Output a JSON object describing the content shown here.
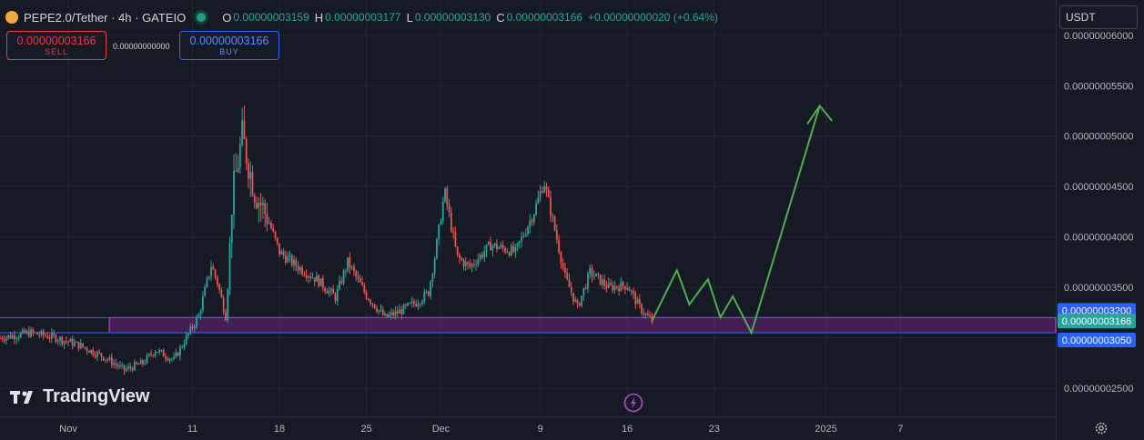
{
  "header": {
    "symbol": "PEPE2.0/Tether · 4h · GATEIO",
    "open_label": "O",
    "open": "0.00000003159",
    "high_label": "H",
    "high": "0.00000003177",
    "low_label": "L",
    "low": "0.00000003130",
    "close_label": "C",
    "close": "0.00000003166",
    "change": "+0.00000000020 (+0.64%)"
  },
  "trade": {
    "sell_price": "0.00000003166",
    "sell_label": "SELL",
    "spread": "0.00000000000",
    "buy_price": "0.00000003166",
    "buy_label": "BUY"
  },
  "currency": "USDT",
  "branding": "TradingView",
  "colors": {
    "up": "#26a69a",
    "down": "#ef5350",
    "zone": "#9c27b0",
    "line": "#2962ff",
    "arrow": "#4caf50"
  },
  "chart_data": {
    "type": "candlestick",
    "interval": "4h",
    "y_ticks": [
      "0.00000002500",
      "0.00000003000",
      "0.00000003500",
      "0.00000004000",
      "0.00000004500",
      "0.00000005000",
      "0.00000005500",
      "0.00000006000"
    ],
    "y_tick_values": [
      2.5e-08,
      3e-08,
      3.5e-08,
      4e-08,
      4.5e-08,
      5e-08,
      5.5e-08,
      6e-08
    ],
    "ylim": [
      2.22e-08,
      6.35e-08
    ],
    "x_ticks": [
      "Nov",
      "11",
      "18",
      "25",
      "Dec",
      "9",
      "16",
      "23",
      "2025",
      "7"
    ],
    "x_tick_days": [
      0,
      10,
      17,
      24,
      30,
      38,
      45,
      52,
      61,
      67
    ],
    "x_range_days": [
      -5.5,
      79.5
    ],
    "price_labels": [
      {
        "text": "0.00000003200",
        "value": 3.2e-08,
        "color": "#2962ff"
      },
      {
        "text": "0.00000003166",
        "value": 3.166e-08,
        "color": "#26a69a"
      },
      {
        "text": "0.00000003050",
        "value": 3.05e-08,
        "color": "#2962ff"
      }
    ],
    "zone": {
      "from_day": 3.3,
      "top": 3.2e-08,
      "bottom": 3.05e-08
    },
    "path_knots": [
      [
        -5.5,
        3e-08
      ],
      [
        -3,
        3.05e-08
      ],
      [
        -1,
        3e-08
      ],
      [
        1,
        2.92e-08
      ],
      [
        3,
        2.8e-08
      ],
      [
        4.5,
        2.68e-08
      ],
      [
        6,
        2.75e-08
      ],
      [
        7,
        2.88e-08
      ],
      [
        8.5,
        2.78e-08
      ],
      [
        9.5,
        3e-08
      ],
      [
        10.5,
        3.22e-08
      ],
      [
        11.5,
        3.72e-08
      ],
      [
        12,
        3.55e-08
      ],
      [
        12.7,
        3.2e-08
      ],
      [
        13.2,
        4.4e-08
      ],
      [
        14,
        5e-08
      ],
      [
        15,
        4.45e-08
      ],
      [
        16,
        4.2e-08
      ],
      [
        17,
        3.85e-08
      ],
      [
        18.5,
        3.7e-08
      ],
      [
        20,
        3.58e-08
      ],
      [
        21.5,
        3.4e-08
      ],
      [
        22.5,
        3.75e-08
      ],
      [
        24,
        3.42e-08
      ],
      [
        25.5,
        3.2e-08
      ],
      [
        26.5,
        3.25e-08
      ],
      [
        28,
        3.35e-08
      ],
      [
        29,
        3.45e-08
      ],
      [
        29.5,
        3.8e-08
      ],
      [
        30.3,
        4.45e-08
      ],
      [
        31.3,
        3.8e-08
      ],
      [
        32.3,
        3.7e-08
      ],
      [
        34,
        3.92e-08
      ],
      [
        36,
        3.85e-08
      ],
      [
        37.5,
        4.25e-08
      ],
      [
        38.3,
        4.55e-08
      ],
      [
        39.3,
        4e-08
      ],
      [
        40,
        3.6e-08
      ],
      [
        41,
        3.3e-08
      ],
      [
        42,
        3.65e-08
      ],
      [
        43.5,
        3.5e-08
      ],
      [
        45,
        3.52e-08
      ],
      [
        46,
        3.3e-08
      ],
      [
        47,
        3.16e-08
      ]
    ],
    "projection": {
      "path": [
        [
          47,
          3.17e-08
        ],
        [
          49,
          3.67e-08
        ],
        [
          50,
          3.33e-08
        ],
        [
          51.5,
          3.58e-08
        ],
        [
          52.5,
          3.2e-08
        ],
        [
          53.5,
          3.41e-08
        ],
        [
          55,
          3.05e-08
        ],
        [
          60.5,
          5.3e-08
        ]
      ],
      "arrowhead": [
        [
          59.5,
          5.12e-08
        ],
        [
          60.5,
          5.3e-08
        ],
        [
          61.5,
          5.15e-08
        ]
      ]
    },
    "event_marker_day": 45.5
  }
}
